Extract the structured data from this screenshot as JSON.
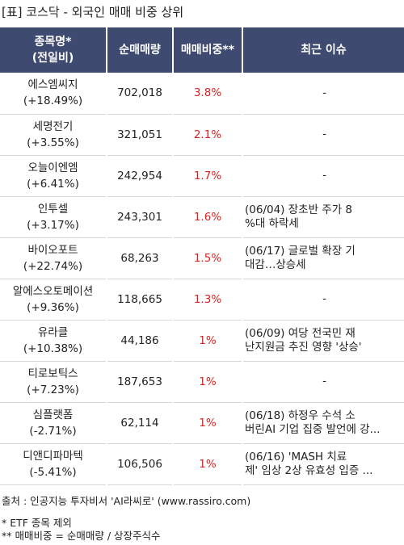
{
  "title": "[표] 코스닥 - 외국인 매매 비중 상위",
  "headers": {
    "name": "종목명*\n(전일비)",
    "volume": "순매매량",
    "ratio": "매매비중**",
    "issue": "최근 이슈"
  },
  "rows": [
    {
      "name": "에스엠씨지",
      "change": "(+18.49%)",
      "volume": "702,018",
      "ratio": "3.8%",
      "issue": "-"
    },
    {
      "name": "세명전기",
      "change": "(+3.55%)",
      "volume": "321,051",
      "ratio": "2.1%",
      "issue": "-"
    },
    {
      "name": "오늘이엔엠",
      "change": "(+6.41%)",
      "volume": "242,954",
      "ratio": "1.7%",
      "issue": "-"
    },
    {
      "name": "인투셀",
      "change": "(+3.17%)",
      "volume": "243,301",
      "ratio": "1.6%",
      "issue": "(06/04) 장초반 주가 8\n%대 하락세"
    },
    {
      "name": "바이오포트",
      "change": "(+22.74%)",
      "volume": "68,263",
      "ratio": "1.5%",
      "issue": "(06/17) 글로벌 확장 기\n대감…상승세"
    },
    {
      "name": "알에스오토메이션",
      "change": "(+9.36%)",
      "volume": "118,665",
      "ratio": "1.3%",
      "issue": "-"
    },
    {
      "name": "유라클",
      "change": "(+10.38%)",
      "volume": "44,186",
      "ratio": "1%",
      "issue": "(06/09) 여당 전국민 재\n난지원금 추진 영향 '상승'"
    },
    {
      "name": "티로보틱스",
      "change": "(+7.23%)",
      "volume": "187,653",
      "ratio": "1%",
      "issue": "-"
    },
    {
      "name": "심플랫폼",
      "change": "(-2.71%)",
      "volume": "62,114",
      "ratio": "1%",
      "issue": "(06/18) 하정우 수석 소\n버린AI 기업 집중 발언에 강..."
    },
    {
      "name": "디앤디파마텍",
      "change": "(-5.41%)",
      "volume": "106,506",
      "ratio": "1%",
      "issue": "(06/16) 'MASH 치료\n제' 임상 2상 유효성 입증 ..."
    }
  ],
  "footer": {
    "source": "출처 : 인공지능 투자비서 'AI라씨로' (www.rassiro.com)",
    "note1": "* ETF 종목 제외",
    "note2": "** 매매비중 = 순매매량 / 상장주식수"
  },
  "colors": {
    "header_bg": "#3e4a70",
    "ratio_red": "#e02020"
  }
}
